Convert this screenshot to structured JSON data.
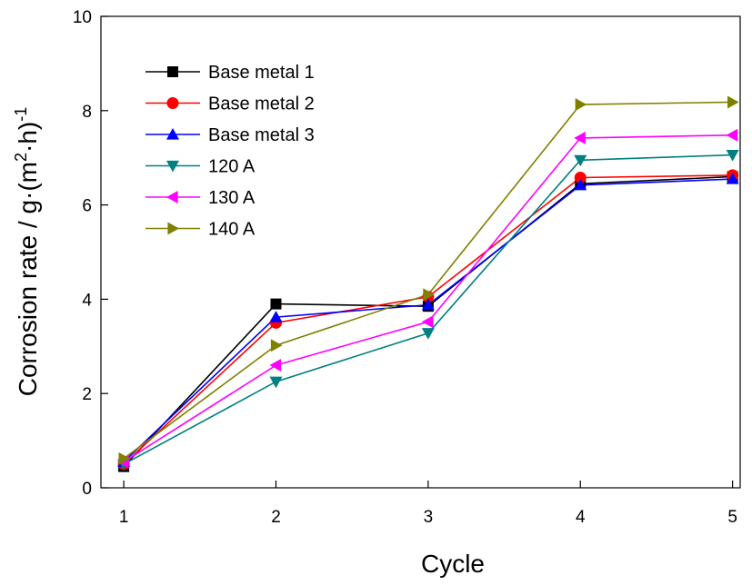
{
  "chart_data": {
    "type": "line",
    "title": "",
    "xlabel": "Cycle",
    "ylabel": {
      "main": "Corrosion rate / g·(m",
      "sup1": "2",
      "mid": "·h)",
      "sup2": "-1"
    },
    "x": [
      1,
      2,
      3,
      4,
      5
    ],
    "xlim": [
      0.85,
      5.05
    ],
    "ylim": [
      0,
      10
    ],
    "xticks": [
      "1",
      "2",
      "3",
      "4",
      "5"
    ],
    "yticks": [
      "0",
      "2",
      "4",
      "6",
      "8",
      "10"
    ],
    "grid": false,
    "legend_position": "top-left",
    "series": [
      {
        "name": "Base metal 1",
        "color": "#000000",
        "marker": "square",
        "values": [
          0.45,
          3.9,
          3.85,
          6.45,
          6.6
        ]
      },
      {
        "name": "Base metal 2",
        "color": "#ff0000",
        "marker": "circle",
        "values": [
          0.5,
          3.5,
          4.05,
          6.58,
          6.63
        ]
      },
      {
        "name": "Base metal 3",
        "color": "#0000ff",
        "marker": "triangle-up",
        "values": [
          0.55,
          3.62,
          3.88,
          6.42,
          6.55
        ]
      },
      {
        "name": "120 A",
        "color": "#008080",
        "marker": "triangle-down",
        "values": [
          0.5,
          2.25,
          3.28,
          6.95,
          7.06
        ]
      },
      {
        "name": "130 A",
        "color": "#ff00ff",
        "marker": "triangle-left",
        "values": [
          0.55,
          2.6,
          3.52,
          7.42,
          7.48
        ]
      },
      {
        "name": "140 A",
        "color": "#808000",
        "marker": "triangle-right",
        "values": [
          0.62,
          3.02,
          4.1,
          8.13,
          8.18
        ]
      }
    ]
  }
}
